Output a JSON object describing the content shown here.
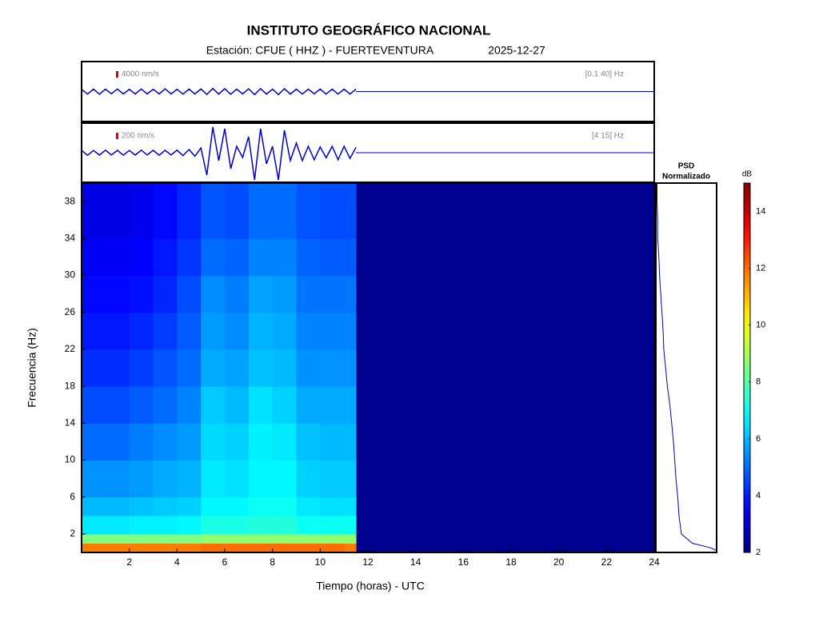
{
  "header": {
    "title": "INSTITUTO GEOGRÁFICO NACIONAL",
    "station": "Estación:  CFUE ( HHZ ) - FUERTEVENTURA",
    "date": "2025-12-27"
  },
  "chart_data": [
    {
      "type": "waveform",
      "scale": {
        "value": 4000,
        "label": "4000 nm/s"
      },
      "filter": "[0.1 40] Hz",
      "color": "#0000cc",
      "xlim": [
        0,
        24
      ],
      "x": [
        0,
        0.25,
        0.5,
        0.75,
        1,
        1.25,
        1.5,
        1.75,
        2,
        2.25,
        2.5,
        2.75,
        3,
        3.25,
        3.5,
        3.75,
        4,
        4.25,
        4.5,
        4.75,
        5,
        5.25,
        5.5,
        5.75,
        6,
        6.25,
        6.5,
        6.75,
        7,
        7.25,
        7.5,
        7.75,
        8,
        8.25,
        8.5,
        8.75,
        9,
        9.25,
        9.5,
        9.75,
        10,
        10.25,
        10.5,
        10.75,
        11,
        11.25,
        11.5
      ],
      "values": [
        1400,
        1600,
        1500,
        1700,
        1500,
        1400,
        1600,
        1500,
        1400,
        1500,
        1600,
        1500,
        1400,
        1500,
        1700,
        1500,
        1400,
        1600,
        1500,
        1500,
        1600,
        1800,
        1900,
        1600,
        1800,
        1700,
        1500,
        1500,
        1700,
        1900,
        1800,
        1600,
        1500,
        1900,
        1800,
        1600,
        1500,
        1600,
        1500,
        1400,
        1500,
        1600,
        1500,
        1600,
        1500,
        1600,
        1500
      ]
    },
    {
      "type": "waveform",
      "scale": {
        "value": 200,
        "label": "200 nm/s"
      },
      "filter": "[4 15] Hz",
      "color": "#0000cc",
      "xlim": [
        0,
        24
      ],
      "x": [
        0,
        0.25,
        0.5,
        0.75,
        1,
        1.25,
        1.5,
        1.75,
        2,
        2.25,
        2.5,
        2.75,
        3,
        3.25,
        3.5,
        3.75,
        4,
        4.25,
        4.5,
        4.75,
        5,
        5.25,
        5.5,
        5.75,
        6,
        6.25,
        6.5,
        6.75,
        7,
        7.25,
        7.5,
        7.75,
        8,
        8.25,
        8.5,
        8.75,
        9,
        9.25,
        9.5,
        9.75,
        10,
        10.25,
        10.5,
        10.75,
        11,
        11.25,
        11.5
      ],
      "values": [
        70,
        80,
        70,
        75,
        80,
        70,
        75,
        80,
        70,
        75,
        80,
        70,
        75,
        80,
        75,
        70,
        80,
        90,
        100,
        110,
        150,
        700,
        800,
        250,
        750,
        500,
        200,
        150,
        500,
        850,
        750,
        350,
        200,
        850,
        700,
        250,
        300,
        250,
        200,
        220,
        180,
        160,
        200,
        220,
        200,
        180,
        170
      ]
    },
    {
      "type": "heatmap",
      "xlabel": "Tiempo (horas) - UTC",
      "ylabel": "Frecuencia  (Hz)",
      "colormap": "jet",
      "xlim": [
        0,
        24
      ],
      "ylim": [
        0,
        40
      ],
      "xticks": [
        2,
        4,
        6,
        8,
        10,
        12,
        14,
        16,
        18,
        20,
        22,
        24
      ],
      "yticks": [
        2,
        6,
        10,
        14,
        18,
        22,
        26,
        30,
        34,
        38
      ],
      "xbins": [
        0,
        1,
        2,
        3,
        4,
        5,
        6,
        7,
        8,
        9,
        10,
        11,
        11.5
      ],
      "ybins": [
        0,
        1,
        2,
        4,
        6,
        10,
        14,
        18,
        22,
        26,
        30,
        34,
        40
      ],
      "values": [
        [
          11.8,
          11.8,
          11.8,
          11.8,
          11.8,
          12,
          12,
          12,
          12,
          12,
          12,
          11.8
        ],
        [
          8.5,
          8.5,
          8.5,
          8.5,
          8.5,
          8.7,
          8.7,
          8.7,
          8.7,
          8.7,
          8.7,
          8.7
        ],
        [
          6.6,
          6.6,
          6.7,
          6.7,
          6.8,
          7.2,
          7.2,
          7.3,
          7.3,
          7.0,
          7.0,
          7.0
        ],
        [
          6.0,
          6.0,
          6.1,
          6.2,
          6.3,
          6.8,
          6.8,
          7.0,
          7.0,
          6.6,
          6.5,
          6.5
        ],
        [
          5.5,
          5.5,
          5.6,
          5.8,
          5.9,
          6.6,
          6.5,
          6.8,
          6.8,
          6.3,
          6.2,
          6.2
        ],
        [
          5.0,
          5.0,
          5.2,
          5.4,
          5.6,
          6.4,
          6.3,
          6.7,
          6.6,
          6.1,
          6.0,
          6.0
        ],
        [
          4.6,
          4.6,
          4.8,
          5.0,
          5.3,
          6.2,
          6.0,
          6.5,
          6.3,
          5.8,
          5.8,
          5.8
        ],
        [
          4.2,
          4.2,
          4.4,
          4.7,
          5.0,
          5.8,
          5.7,
          6.1,
          6.0,
          5.5,
          5.5,
          5.5
        ],
        [
          3.9,
          3.9,
          4.1,
          4.4,
          4.8,
          5.6,
          5.4,
          5.9,
          5.8,
          5.3,
          5.3,
          5.3
        ],
        [
          3.7,
          3.7,
          3.8,
          4.1,
          4.6,
          5.4,
          5.2,
          5.7,
          5.6,
          5.1,
          5.1,
          5.1
        ],
        [
          3.5,
          3.5,
          3.6,
          3.9,
          4.3,
          5.0,
          4.9,
          5.3,
          5.3,
          4.9,
          4.8,
          4.8
        ],
        [
          3.3,
          3.3,
          3.4,
          3.7,
          4.1,
          4.7,
          4.6,
          5.0,
          5.0,
          4.7,
          4.6,
          4.6
        ]
      ],
      "colorbar": {
        "label": "dB",
        "lim": [
          2,
          15
        ],
        "ticks": [
          2,
          4,
          6,
          8,
          10,
          12,
          14
        ]
      }
    },
    {
      "type": "line",
      "title": "PSD",
      "subtitle": "Normalizado",
      "color": "#0000cc",
      "xlim": [
        0,
        1
      ],
      "ylim": [
        0,
        40
      ],
      "frequencies": [
        0.2,
        0.5,
        1,
        2,
        4,
        6,
        8,
        10,
        12,
        14,
        16,
        18,
        20,
        22,
        24,
        26,
        28,
        30,
        32,
        34,
        36,
        38,
        40
      ],
      "values": [
        1,
        0.9,
        0.6,
        0.42,
        0.38,
        0.36,
        0.33,
        0.31,
        0.29,
        0.26,
        0.23,
        0.19,
        0.16,
        0.13,
        0.12,
        0.1,
        0.08,
        0.06,
        0.05,
        0.03,
        0.03,
        0.02,
        0.02
      ]
    }
  ]
}
